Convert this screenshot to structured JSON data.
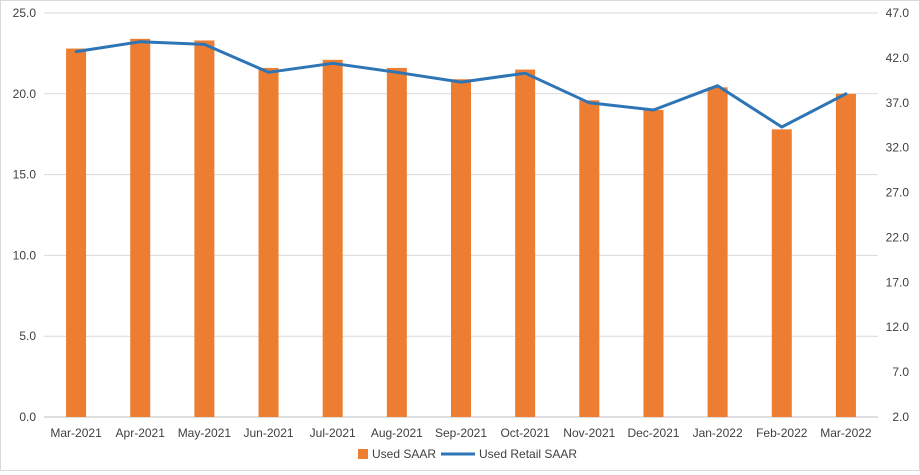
{
  "chart_data": {
    "type": "bar",
    "categories": [
      "Mar-2021",
      "Apr-2021",
      "May-2021",
      "Jun-2021",
      "Jul-2021",
      "Aug-2021",
      "Sep-2021",
      "Oct-2021",
      "Nov-2021",
      "Dec-2021",
      "Jan-2022",
      "Feb-2022",
      "Mar-2022"
    ],
    "series": [
      {
        "name": "Used SAAR",
        "type": "bar",
        "axis": "left",
        "color": "#ED7D31",
        "values": [
          22.8,
          23.4,
          23.3,
          21.6,
          22.1,
          21.6,
          20.9,
          21.5,
          19.6,
          19.0,
          20.4,
          17.8,
          20.0
        ]
      },
      {
        "name": "Used Retail SAAR",
        "type": "line",
        "axis": "right",
        "color": "#2E75B6",
        "values": [
          42.7,
          43.8,
          43.5,
          40.4,
          41.4,
          40.4,
          39.3,
          40.3,
          37.0,
          36.2,
          38.9,
          34.3,
          38.0
        ]
      }
    ],
    "y_left": {
      "min": 0.0,
      "max": 25.0,
      "ticks": [
        "0.0",
        "5.0",
        "10.0",
        "15.0",
        "20.0",
        "25.0"
      ]
    },
    "y_right": {
      "min": 2.0,
      "max": 47.0,
      "ticks": [
        "2.0",
        "7.0",
        "12.0",
        "17.0",
        "22.0",
        "27.0",
        "32.0",
        "37.0",
        "42.0",
        "47.0"
      ]
    },
    "grid": true,
    "legend_position": "bottom",
    "title": "",
    "xlabel": "",
    "ylabel": ""
  }
}
